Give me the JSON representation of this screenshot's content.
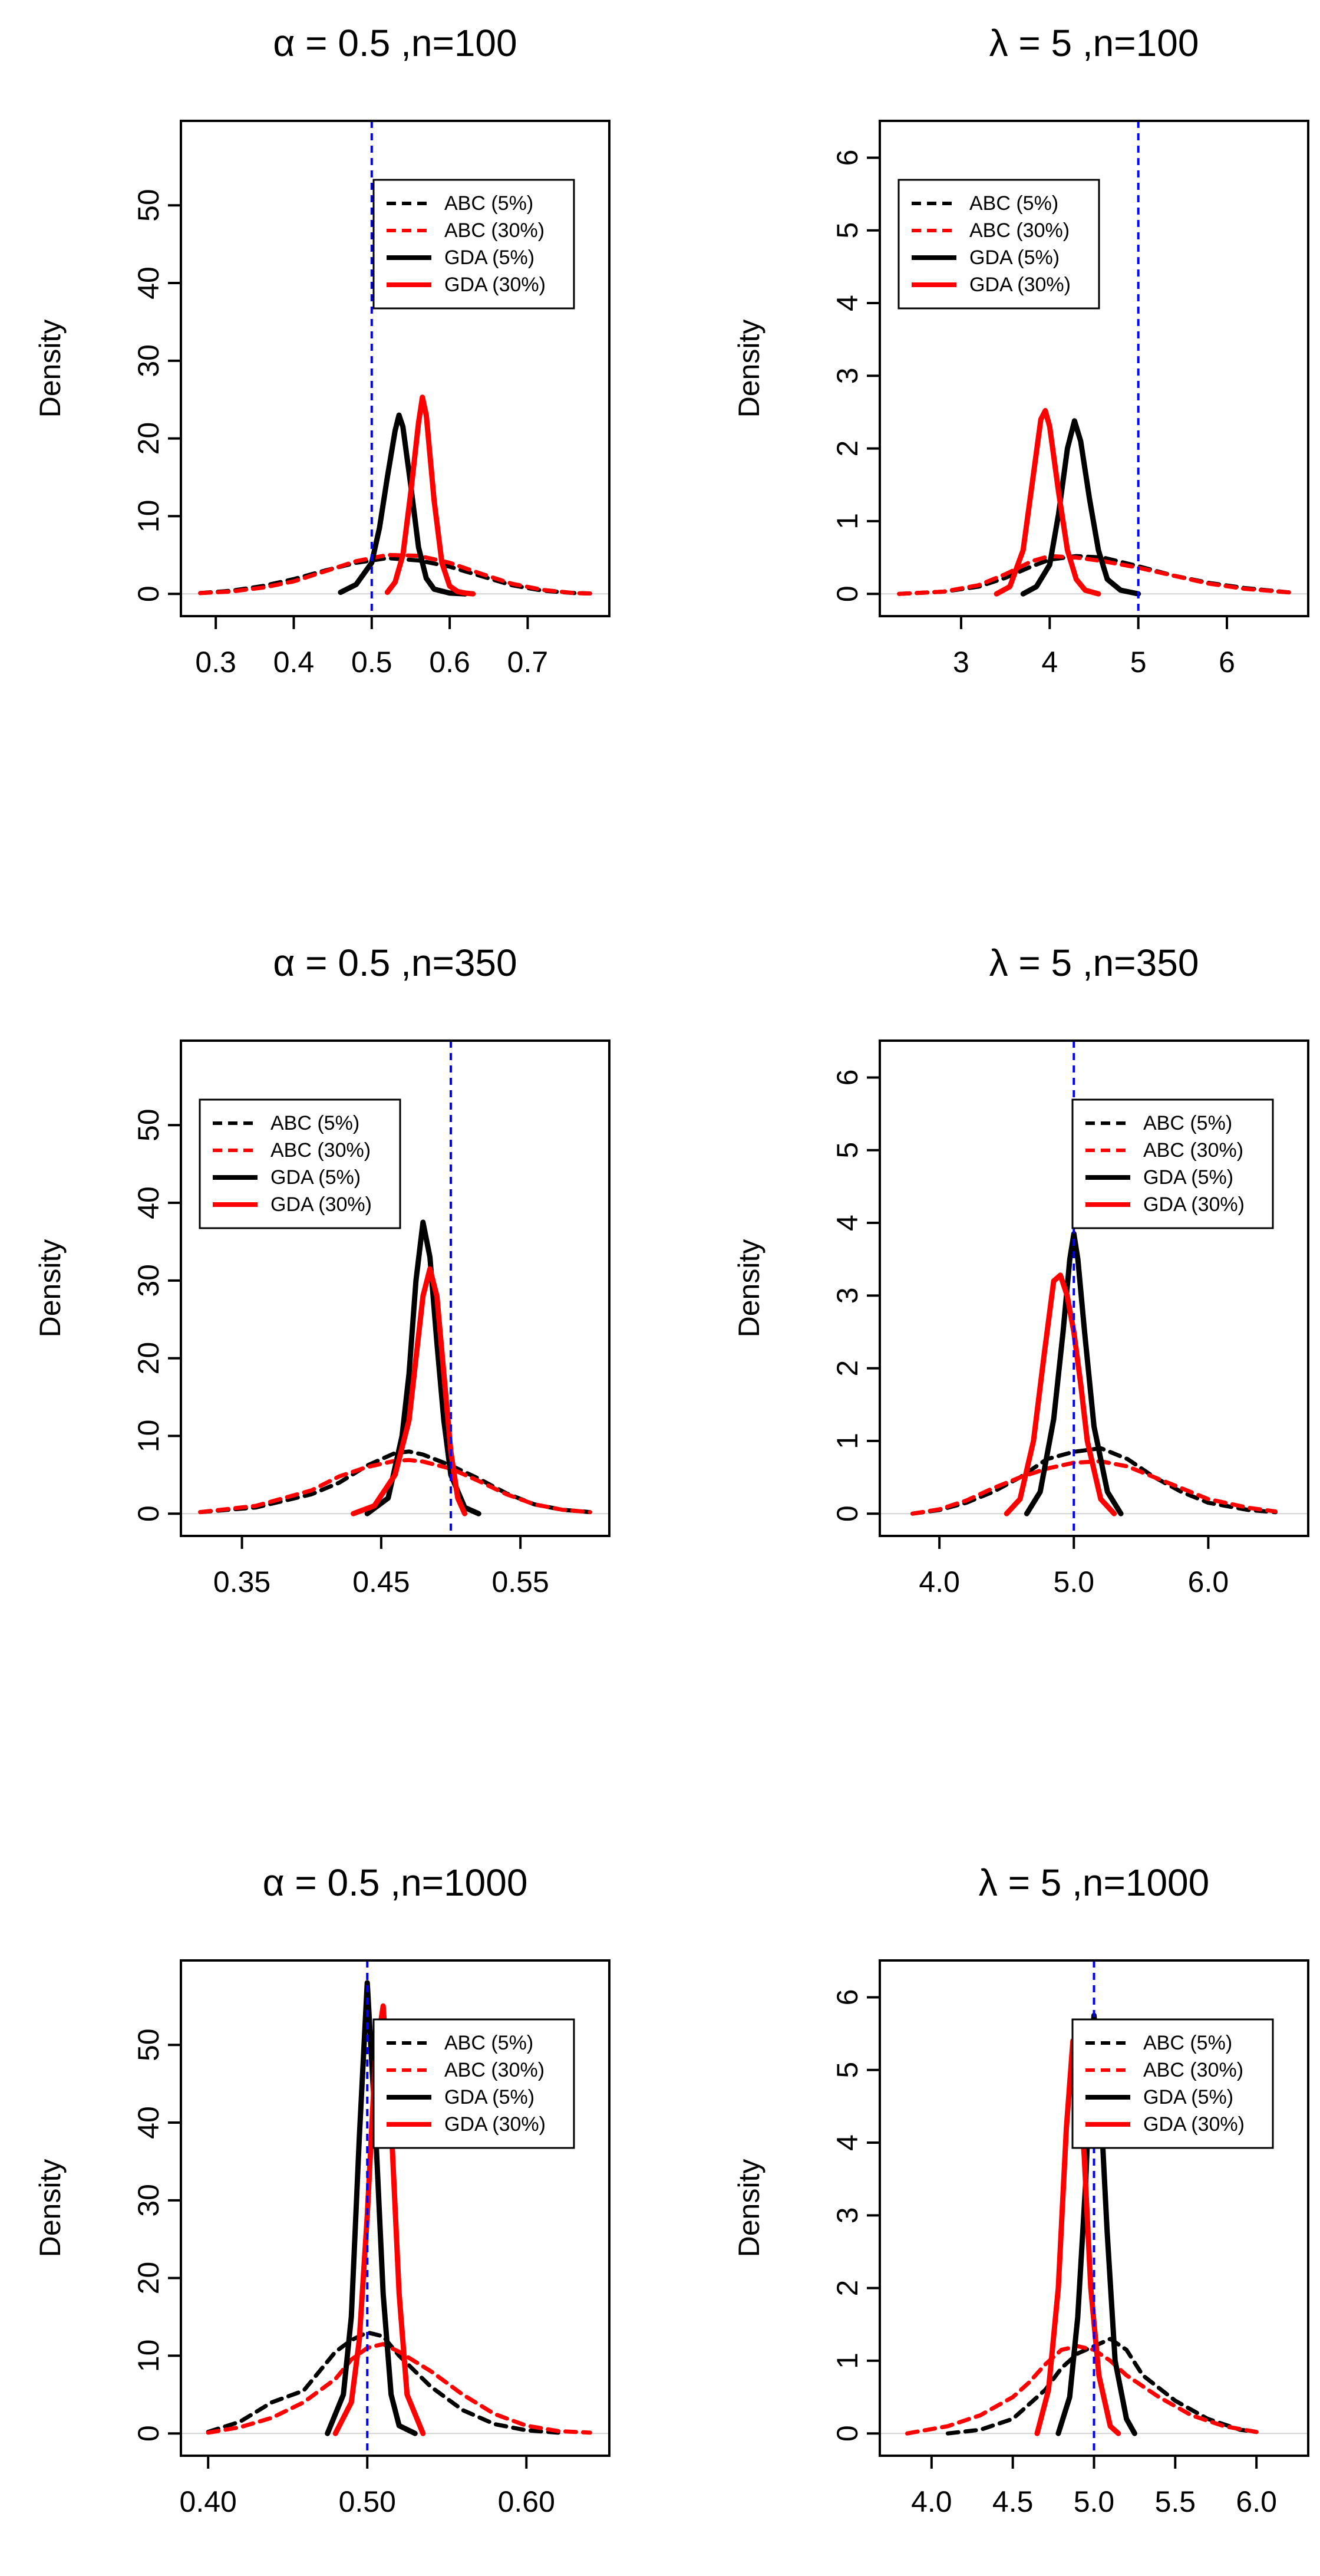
{
  "figure": {
    "legend_entries": [
      {
        "label": "ABC (5%)",
        "color": "#000000",
        "dash": true
      },
      {
        "label": "ABC (30%)",
        "color": "#ff0000",
        "dash": true
      },
      {
        "label": "GDA (5%)",
        "color": "#000000",
        "dash": false
      },
      {
        "label": "GDA (30%)",
        "color": "#ff0000",
        "dash": false
      }
    ],
    "colors": {
      "black": "#000000",
      "red": "#ff0000",
      "reference": "#0000ff",
      "zero_line": "#d3d3d3"
    }
  },
  "chart_data": [
    {
      "type": "line",
      "title": "α = 0.5 ,n=100",
      "ylabel": "Density",
      "xlim": [
        0.28,
        0.78
      ],
      "ylim": [
        0,
        58
      ],
      "xticks": [
        0.3,
        0.4,
        0.5,
        0.6,
        0.7
      ],
      "xtick_labels": [
        "0.3",
        "0.4",
        "0.5",
        "0.6",
        "0.7"
      ],
      "yticks": [
        0,
        10,
        20,
        30,
        40,
        50
      ],
      "ytick_labels": [
        "0",
        "10",
        "20",
        "30",
        "40",
        "50"
      ],
      "reference_x": 0.5,
      "legend_position": "top-right",
      "series": [
        {
          "name": "ABC (5%)",
          "x": [
            0.28,
            0.32,
            0.36,
            0.4,
            0.44,
            0.48,
            0.52,
            0.56,
            0.6,
            0.64,
            0.68,
            0.72,
            0.76,
            0.78
          ],
          "y": [
            0.1,
            0.4,
            1.0,
            1.9,
            3.0,
            4.0,
            4.6,
            4.3,
            3.5,
            2.3,
            1.1,
            0.4,
            0.1,
            0.05
          ]
        },
        {
          "name": "ABC (30%)",
          "x": [
            0.28,
            0.32,
            0.36,
            0.4,
            0.44,
            0.48,
            0.52,
            0.56,
            0.6,
            0.64,
            0.68,
            0.72,
            0.76,
            0.78
          ],
          "y": [
            0.1,
            0.3,
            0.8,
            1.6,
            2.9,
            4.2,
            5.0,
            4.9,
            4.0,
            2.6,
            1.3,
            0.5,
            0.1,
            0.05
          ]
        },
        {
          "name": "GDA (5%)",
          "x": [
            0.46,
            0.48,
            0.5,
            0.51,
            0.52,
            0.53,
            0.535,
            0.54,
            0.55,
            0.56,
            0.57,
            0.58,
            0.6,
            0.62
          ],
          "y": [
            0.2,
            1.2,
            4.0,
            8.5,
            15.0,
            21.0,
            23.0,
            21.5,
            14.0,
            6.0,
            2.0,
            0.6,
            0.1,
            0.0
          ]
        },
        {
          "name": "GDA (30%)",
          "x": [
            0.52,
            0.53,
            0.54,
            0.55,
            0.56,
            0.565,
            0.57,
            0.58,
            0.59,
            0.6,
            0.61,
            0.62,
            0.63
          ],
          "y": [
            0.2,
            1.5,
            5.0,
            13.0,
            22.0,
            25.3,
            23.0,
            12.0,
            4.0,
            1.0,
            0.3,
            0.1,
            0.0
          ]
        }
      ]
    },
    {
      "type": "line",
      "title": "λ = 5 ,n=100",
      "ylabel": "Density",
      "xlim": [
        2.3,
        6.7
      ],
      "ylim": [
        0,
        6.2
      ],
      "xticks": [
        3,
        4,
        5,
        6
      ],
      "xtick_labels": [
        "3",
        "4",
        "5",
        "6"
      ],
      "yticks": [
        0,
        1,
        2,
        3,
        4,
        5,
        6
      ],
      "ytick_labels": [
        "0",
        "1",
        "2",
        "3",
        "4",
        "5",
        "6"
      ],
      "reference_x": 5,
      "legend_position": "top-left",
      "series": [
        {
          "name": "ABC (5%)",
          "x": [
            2.3,
            2.8,
            3.2,
            3.5,
            3.8,
            4.0,
            4.3,
            4.6,
            5.0,
            5.4,
            5.8,
            6.2,
            6.7
          ],
          "y": [
            0.0,
            0.03,
            0.1,
            0.22,
            0.38,
            0.47,
            0.52,
            0.5,
            0.38,
            0.25,
            0.15,
            0.08,
            0.02
          ]
        },
        {
          "name": "ABC (30%)",
          "x": [
            2.3,
            2.8,
            3.2,
            3.5,
            3.8,
            4.0,
            4.3,
            4.6,
            5.0,
            5.4,
            5.8,
            6.2,
            6.7
          ],
          "y": [
            0.0,
            0.03,
            0.12,
            0.27,
            0.45,
            0.52,
            0.5,
            0.45,
            0.36,
            0.25,
            0.14,
            0.07,
            0.02
          ]
        },
        {
          "name": "GDA (5%)",
          "x": [
            3.7,
            3.85,
            4.0,
            4.1,
            4.2,
            4.28,
            4.35,
            4.45,
            4.55,
            4.65,
            4.8,
            5.0
          ],
          "y": [
            0.0,
            0.1,
            0.4,
            1.1,
            2.0,
            2.38,
            2.1,
            1.3,
            0.6,
            0.2,
            0.05,
            0.0
          ]
        },
        {
          "name": "GDA (30%)",
          "x": [
            3.4,
            3.55,
            3.7,
            3.8,
            3.9,
            3.95,
            4.0,
            4.1,
            4.2,
            4.3,
            4.4,
            4.55
          ],
          "y": [
            0.0,
            0.1,
            0.6,
            1.5,
            2.4,
            2.52,
            2.3,
            1.4,
            0.6,
            0.2,
            0.05,
            0.0
          ]
        }
      ]
    },
    {
      "type": "line",
      "title": "α = 0.5 ,n=350",
      "ylabel": "Density",
      "xlim": [
        0.32,
        0.6
      ],
      "ylim": [
        0,
        58
      ],
      "xticks": [
        0.35,
        0.45,
        0.55
      ],
      "xtick_labels": [
        "0.35",
        "0.45",
        "0.55"
      ],
      "yticks": [
        0,
        10,
        20,
        30,
        40,
        50
      ],
      "ytick_labels": [
        "0",
        "10",
        "20",
        "30",
        "40",
        "50"
      ],
      "reference_x": 0.5,
      "legend_position": "top-left",
      "series": [
        {
          "name": "ABC (5%)",
          "x": [
            0.32,
            0.36,
            0.4,
            0.42,
            0.44,
            0.46,
            0.47,
            0.48,
            0.5,
            0.52,
            0.54,
            0.56,
            0.58,
            0.6
          ],
          "y": [
            0.2,
            0.8,
            2.5,
            4.0,
            6.2,
            7.8,
            8.0,
            7.6,
            6.2,
            4.5,
            2.6,
            1.2,
            0.5,
            0.2
          ]
        },
        {
          "name": "ABC (30%)",
          "x": [
            0.32,
            0.36,
            0.4,
            0.42,
            0.44,
            0.46,
            0.47,
            0.48,
            0.5,
            0.52,
            0.54,
            0.56,
            0.58,
            0.6
          ],
          "y": [
            0.2,
            1.0,
            3.0,
            4.8,
            6.0,
            6.8,
            6.9,
            6.7,
            5.8,
            4.2,
            2.5,
            1.2,
            0.5,
            0.2
          ]
        },
        {
          "name": "GDA (5%)",
          "x": [
            0.44,
            0.455,
            0.465,
            0.47,
            0.475,
            0.48,
            0.485,
            0.49,
            0.495,
            0.5,
            0.51,
            0.52
          ],
          "y": [
            0.0,
            2.0,
            10.0,
            18.0,
            30.0,
            37.5,
            33.0,
            22.0,
            12.0,
            5.0,
            0.8,
            0.0
          ]
        },
        {
          "name": "GDA (30%)",
          "x": [
            0.43,
            0.445,
            0.46,
            0.47,
            0.475,
            0.48,
            0.485,
            0.49,
            0.495,
            0.5,
            0.505,
            0.51
          ],
          "y": [
            0.0,
            1.0,
            5.0,
            12.0,
            20.0,
            28.0,
            31.5,
            28.0,
            18.0,
            8.0,
            2.0,
            0.0
          ]
        }
      ]
    },
    {
      "type": "line",
      "title": "λ = 5 ,n=350",
      "ylabel": "Density",
      "xlim": [
        3.7,
        6.6
      ],
      "ylim": [
        0,
        6.2
      ],
      "xticks": [
        4.0,
        5.0,
        6.0
      ],
      "xtick_labels": [
        "4.0",
        "5.0",
        "6.0"
      ],
      "yticks": [
        0,
        1,
        2,
        3,
        4,
        5,
        6
      ],
      "ytick_labels": [
        "0",
        "1",
        "2",
        "3",
        "4",
        "5",
        "6"
      ],
      "reference_x": 5,
      "legend_position": "top-right",
      "series": [
        {
          "name": "ABC (5%)",
          "x": [
            3.8,
            4.0,
            4.2,
            4.4,
            4.6,
            4.8,
            5.0,
            5.2,
            5.4,
            5.6,
            5.8,
            6.0,
            6.3,
            6.5
          ],
          "y": [
            0.0,
            0.05,
            0.15,
            0.3,
            0.5,
            0.75,
            0.85,
            0.9,
            0.75,
            0.5,
            0.3,
            0.15,
            0.05,
            0.02
          ]
        },
        {
          "name": "ABC (30%)",
          "x": [
            3.8,
            4.0,
            4.2,
            4.4,
            4.6,
            4.8,
            5.0,
            5.2,
            5.4,
            5.6,
            5.8,
            6.0,
            6.3,
            6.5
          ],
          "y": [
            0.0,
            0.06,
            0.18,
            0.35,
            0.5,
            0.62,
            0.7,
            0.72,
            0.65,
            0.5,
            0.35,
            0.2,
            0.08,
            0.03
          ]
        },
        {
          "name": "GDA (5%)",
          "x": [
            4.65,
            4.75,
            4.85,
            4.92,
            4.97,
            5.0,
            5.03,
            5.08,
            5.15,
            5.25,
            5.35
          ],
          "y": [
            0.0,
            0.3,
            1.3,
            2.5,
            3.5,
            3.85,
            3.5,
            2.5,
            1.2,
            0.3,
            0.0
          ]
        },
        {
          "name": "GDA (30%)",
          "x": [
            4.5,
            4.6,
            4.7,
            4.78,
            4.85,
            4.9,
            4.95,
            5.0,
            5.05,
            5.1,
            5.2,
            5.3
          ],
          "y": [
            0.0,
            0.2,
            1.0,
            2.2,
            3.2,
            3.28,
            3.0,
            2.5,
            1.8,
            1.0,
            0.2,
            0.0
          ]
        }
      ]
    },
    {
      "type": "line",
      "title": "α = 0.5 ,n=1000",
      "ylabel": "Density",
      "xlim": [
        0.395,
        0.64
      ],
      "ylim": [
        0,
        58
      ],
      "xticks": [
        0.4,
        0.5,
        0.6
      ],
      "xtick_labels": [
        "0.40",
        "0.50",
        "0.60"
      ],
      "yticks": [
        0,
        10,
        20,
        30,
        40,
        50
      ],
      "ytick_labels": [
        "0",
        "10",
        "20",
        "30",
        "40",
        "50"
      ],
      "reference_x": 0.5,
      "legend_position": "top-right",
      "series": [
        {
          "name": "ABC (5%)",
          "x": [
            0.4,
            0.42,
            0.44,
            0.46,
            0.47,
            0.48,
            0.49,
            0.5,
            0.51,
            0.52,
            0.54,
            0.56,
            0.58,
            0.6,
            0.62
          ],
          "y": [
            0.2,
            1.5,
            4.0,
            5.5,
            8.0,
            10.5,
            12.0,
            13.0,
            12.5,
            10.0,
            6.0,
            3.0,
            1.2,
            0.4,
            0.1
          ]
        },
        {
          "name": "ABC (30%)",
          "x": [
            0.4,
            0.42,
            0.44,
            0.46,
            0.48,
            0.49,
            0.5,
            0.51,
            0.52,
            0.54,
            0.56,
            0.58,
            0.6,
            0.62,
            0.64
          ],
          "y": [
            0.1,
            0.8,
            2.0,
            4.0,
            7.0,
            9.5,
            11.0,
            11.5,
            10.5,
            8.0,
            5.0,
            2.5,
            1.0,
            0.3,
            0.1
          ]
        },
        {
          "name": "GDA (5%)",
          "x": [
            0.475,
            0.485,
            0.49,
            0.495,
            0.5,
            0.505,
            0.51,
            0.515,
            0.52,
            0.53
          ],
          "y": [
            0.0,
            5.0,
            15.0,
            38.0,
            58.0,
            40.0,
            18.0,
            5.0,
            1.0,
            0.0
          ]
        },
        {
          "name": "GDA (30%)",
          "x": [
            0.48,
            0.49,
            0.495,
            0.5,
            0.505,
            0.51,
            0.515,
            0.52,
            0.525,
            0.535
          ],
          "y": [
            0.0,
            4.0,
            12.0,
            28.0,
            48.0,
            55.0,
            40.0,
            18.0,
            5.0,
            0.0
          ]
        }
      ]
    },
    {
      "type": "line",
      "title": "λ = 5 ,n=1000",
      "ylabel": "Density",
      "xlim": [
        3.8,
        6.2
      ],
      "ylim": [
        0,
        6.2
      ],
      "xticks": [
        4.0,
        4.5,
        5.0,
        5.5,
        6.0
      ],
      "xtick_labels": [
        "4.0",
        "4.5",
        "5.0",
        "5.5",
        "6.0"
      ],
      "yticks": [
        0,
        1,
        2,
        3,
        4,
        5,
        6
      ],
      "ytick_labels": [
        "0",
        "1",
        "2",
        "3",
        "4",
        "5",
        "6"
      ],
      "reference_x": 5,
      "legend_position": "top-right",
      "series": [
        {
          "name": "ABC (5%)",
          "x": [
            4.1,
            4.3,
            4.5,
            4.6,
            4.7,
            4.8,
            4.9,
            5.0,
            5.1,
            5.2,
            5.3,
            5.5,
            5.7,
            5.9,
            6.0
          ],
          "y": [
            0.0,
            0.05,
            0.2,
            0.4,
            0.6,
            0.9,
            1.1,
            1.2,
            1.3,
            1.15,
            0.8,
            0.45,
            0.2,
            0.05,
            0.02
          ]
        },
        {
          "name": "ABC (30%)",
          "x": [
            3.85,
            4.1,
            4.3,
            4.5,
            4.6,
            4.7,
            4.8,
            4.9,
            5.0,
            5.1,
            5.2,
            5.4,
            5.6,
            5.8,
            6.0
          ],
          "y": [
            0.0,
            0.1,
            0.25,
            0.5,
            0.7,
            0.95,
            1.15,
            1.2,
            1.15,
            1.0,
            0.8,
            0.5,
            0.25,
            0.1,
            0.02
          ]
        },
        {
          "name": "GDA (5%)",
          "x": [
            4.78,
            4.85,
            4.9,
            4.95,
            4.98,
            5.0,
            5.03,
            5.08,
            5.13,
            5.2,
            5.25
          ],
          "y": [
            0.0,
            0.5,
            1.6,
            3.5,
            5.2,
            5.75,
            5.0,
            2.8,
            1.0,
            0.2,
            0.0
          ]
        },
        {
          "name": "GDA (30%)",
          "x": [
            4.65,
            4.72,
            4.78,
            4.83,
            4.87,
            4.9,
            4.94,
            4.98,
            5.03,
            5.1,
            5.15
          ],
          "y": [
            0.0,
            0.6,
            2.0,
            4.2,
            5.4,
            5.2,
            3.8,
            2.0,
            0.8,
            0.1,
            0.0
          ]
        }
      ]
    }
  ]
}
